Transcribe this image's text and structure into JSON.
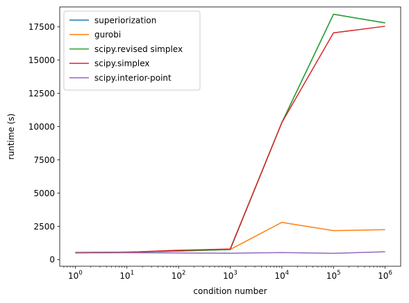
{
  "chart_data": {
    "type": "line",
    "title": "",
    "xlabel": "condition number",
    "ylabel": "runtime (s)",
    "x_scale": "log",
    "x": [
      1,
      10,
      100,
      1000,
      10000,
      100000,
      1000000
    ],
    "xlim": [
      0.5,
      2000000
    ],
    "ylim": [
      -500,
      19000
    ],
    "x_ticks": [
      {
        "base": "10",
        "exp": "0",
        "value": 1
      },
      {
        "base": "10",
        "exp": "1",
        "value": 10
      },
      {
        "base": "10",
        "exp": "2",
        "value": 100
      },
      {
        "base": "10",
        "exp": "3",
        "value": 1000
      },
      {
        "base": "10",
        "exp": "4",
        "value": 10000
      },
      {
        "base": "10",
        "exp": "5",
        "value": 100000
      },
      {
        "base": "10",
        "exp": "6",
        "value": 1000000
      }
    ],
    "y_ticks": [
      {
        "label": "0",
        "value": 0
      },
      {
        "label": "2500",
        "value": 2500
      },
      {
        "label": "5000",
        "value": 5000
      },
      {
        "label": "7500",
        "value": 7500
      },
      {
        "label": "10000",
        "value": 10000
      },
      {
        "label": "12500",
        "value": 12500
      },
      {
        "label": "15000",
        "value": 15000
      },
      {
        "label": "17500",
        "value": 17500
      }
    ],
    "grid": false,
    "legend_position": "top-left",
    "series": [
      {
        "name": "superiorization",
        "color": "#1f77b4",
        "values": [
          530,
          560,
          640,
          760,
          10300,
          18450,
          17800
        ]
      },
      {
        "name": "gurobi",
        "color": "#ff7f0e",
        "values": [
          540,
          550,
          700,
          760,
          2800,
          2180,
          2250
        ]
      },
      {
        "name": "scipy.revised simplex",
        "color": "#2ca02c",
        "values": [
          530,
          560,
          640,
          760,
          10300,
          18450,
          17800
        ]
      },
      {
        "name": "scipy.simplex",
        "color": "#d62728",
        "values": [
          520,
          550,
          700,
          800,
          10300,
          17050,
          17550
        ]
      },
      {
        "name": "scipy.interior-point",
        "color": "#9467bd",
        "values": [
          500,
          520,
          500,
          480,
          530,
          470,
          590
        ]
      }
    ]
  }
}
